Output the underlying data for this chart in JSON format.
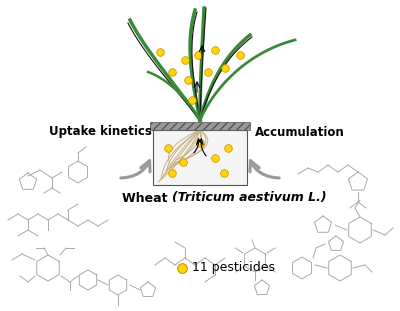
{
  "background_color": "#ffffff",
  "wheat_label": "Wheat ",
  "wheat_italic": "(Triticum aestivum L.)",
  "left_label": "Uptake kinetics",
  "right_label": "Accumulation",
  "pesticide_label": "11 pesticides",
  "dot_color": "#FFD700",
  "dot_edge": "#cc8800",
  "arrow_color": "#999999",
  "stem_green": "#3a8a3a",
  "stem_dark": "#111111",
  "root_color": "#c8b080",
  "structure_color": "#aaaaaa",
  "container_face": "#f5f5f5",
  "container_edge": "#555555",
  "hatch_face": "#999999",
  "hatch_edge": "#555555"
}
